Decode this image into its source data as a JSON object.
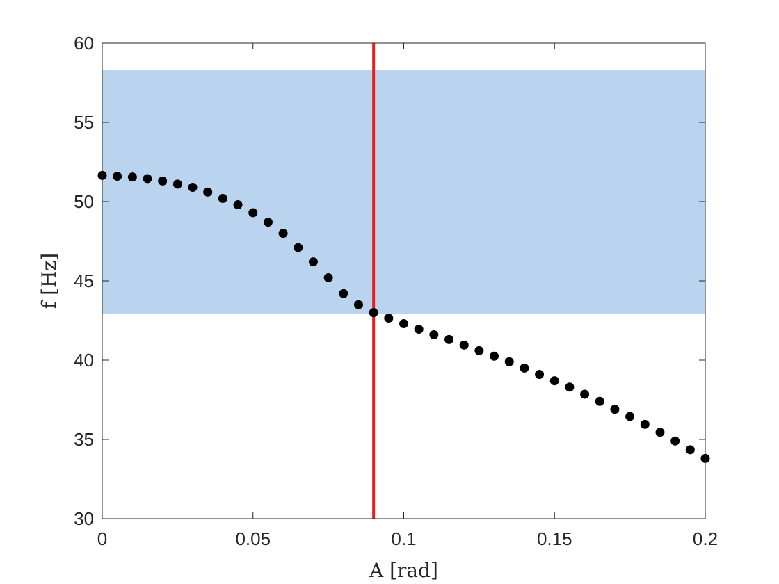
{
  "chart_data": {
    "type": "scatter",
    "title": "",
    "xlabel": "A [rad]",
    "ylabel": "f [Hz]",
    "xlim": [
      0,
      0.2
    ],
    "ylim": [
      30,
      60
    ],
    "xticks": [
      0,
      0.05,
      0.1,
      0.15,
      0.2
    ],
    "xtick_labels": [
      "0",
      "0.05",
      "0.1",
      "0.15",
      "0.2"
    ],
    "yticks": [
      30,
      35,
      40,
      45,
      50,
      55,
      60
    ],
    "ytick_labels": [
      "30",
      "35",
      "40",
      "45",
      "50",
      "55",
      "60"
    ],
    "grid": false,
    "shaded_band": {
      "y_range": [
        42.9,
        58.3
      ],
      "color": "#bad4f0"
    },
    "vertical_line": {
      "x": 0.09,
      "color": "#ee1c1c"
    },
    "marker_color": "#000000",
    "series": [
      {
        "x": [
          0,
          0.005,
          0.01,
          0.015,
          0.02,
          0.025,
          0.03,
          0.035,
          0.04,
          0.045,
          0.05,
          0.055,
          0.06,
          0.065,
          0.07,
          0.075,
          0.08,
          0.085,
          0.09,
          0.095,
          0.1,
          0.105,
          0.11,
          0.115,
          0.12,
          0.125,
          0.13,
          0.135,
          0.14,
          0.145,
          0.15,
          0.155,
          0.16,
          0.165,
          0.17,
          0.175,
          0.18,
          0.185,
          0.19,
          0.195,
          0.2
        ],
        "y": [
          51.65,
          51.6,
          51.55,
          51.45,
          51.3,
          51.1,
          50.9,
          50.6,
          50.2,
          49.8,
          49.3,
          48.7,
          48.0,
          47.1,
          46.2,
          45.2,
          44.2,
          43.5,
          43.0,
          42.65,
          42.3,
          41.95,
          41.6,
          41.3,
          40.95,
          40.6,
          40.25,
          39.9,
          39.5,
          39.1,
          38.7,
          38.3,
          37.85,
          37.4,
          36.9,
          36.45,
          35.95,
          35.45,
          34.9,
          34.35,
          33.8
        ]
      }
    ]
  }
}
